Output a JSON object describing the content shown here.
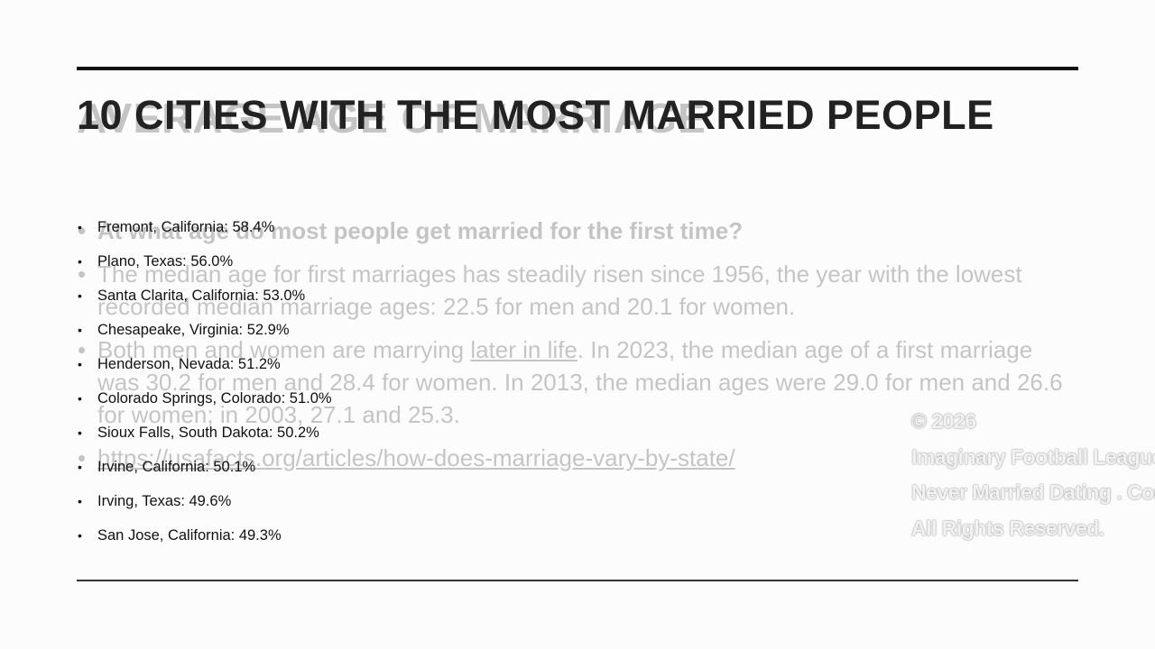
{
  "slide": {
    "title": "10 CITIES WITH THE MOST MARRIED PEOPLE",
    "items": [
      "Fremont, California: 58.4%",
      "Plano, Texas: 56.0%",
      "Santa Clarita, California: 53.0%",
      "Chesapeake, Virginia: 52.9%",
      "Henderson, Nevada: 51.2%",
      "Colorado Springs, Colorado: 51.0%",
      "Sioux Falls, South Dakota: 50.2%",
      "Irvine, California: 50.1%",
      "Irving, Texas: 49.6%",
      "San Jose, California: 49.3%"
    ]
  },
  "previous_slide": {
    "title": "AVERAGE AGE OF MARRIAGE",
    "question": "At what age do most people get married for the first time?",
    "paragraph_1": "The median age for first marriages has steadily risen since 1956, the year with the lowest recorded median marriage ages: 22.5 for men and 20.1 for women.",
    "paragraph_2_start": "Both men and women are marrying ",
    "paragraph_2_link": "later in life",
    "paragraph_2_end": ". In 2023, the median age of a first marriage was 30.2 for men and 28.4 for women. In 2013, the median ages were 29.0 for men and 26.6 for women; in 2003, 27.1 and 25.3.",
    "link": "https://usafacts.org/articles/how-does-marriage-vary-by-state/"
  },
  "watermark": {
    "lines": [
      "© 2026",
      "Imaginary Football League",
      "Never Married Dating . Com",
      "All Rights Reserved."
    ]
  }
}
